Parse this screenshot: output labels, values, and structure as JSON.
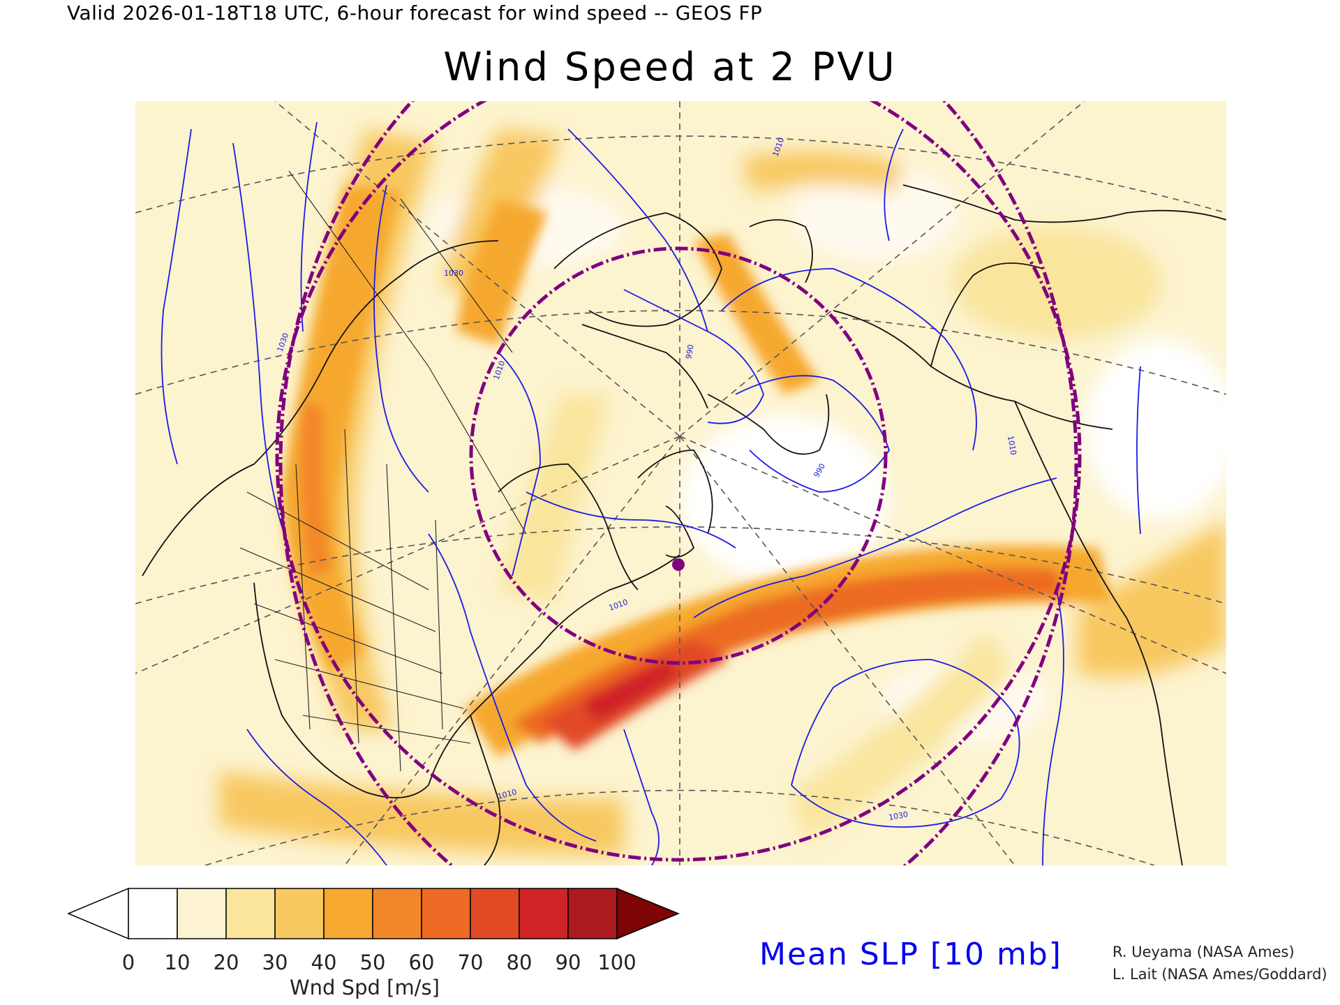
{
  "header": {
    "valid_line": "Valid 2026-01-18T18 UTC, 6-hour forecast for wind speed -- GEOS FP",
    "title": "Wind Speed at 2 PVU"
  },
  "colorbar": {
    "ticks": [
      "0",
      "10",
      "20",
      "30",
      "40",
      "50",
      "60",
      "70",
      "80",
      "90",
      "100"
    ],
    "title": "Wnd Spd [m/s]",
    "colors": [
      "#ffffff",
      "#fdf3d2",
      "#f9e59c",
      "#f8c861",
      "#f6a82f",
      "#f2862a",
      "#ec6a23",
      "#e24a26",
      "#cf2326",
      "#aa1a1e",
      "#7d0505"
    ]
  },
  "legend": {
    "slp_label": "Mean SLP [10 mb]",
    "slp_color": "#0000ee"
  },
  "credits": [
    "R. Ueyama (NASA Ames)",
    "L. Lait (NASA Ames/Goddard)"
  ],
  "map": {
    "contour_labels": [
      "1030",
      "1010",
      "990",
      "1010",
      "1030",
      "1010",
      "990",
      "1010",
      "1030",
      "1010"
    ],
    "marker_color": "#800080",
    "ring_color": "#800080"
  }
}
